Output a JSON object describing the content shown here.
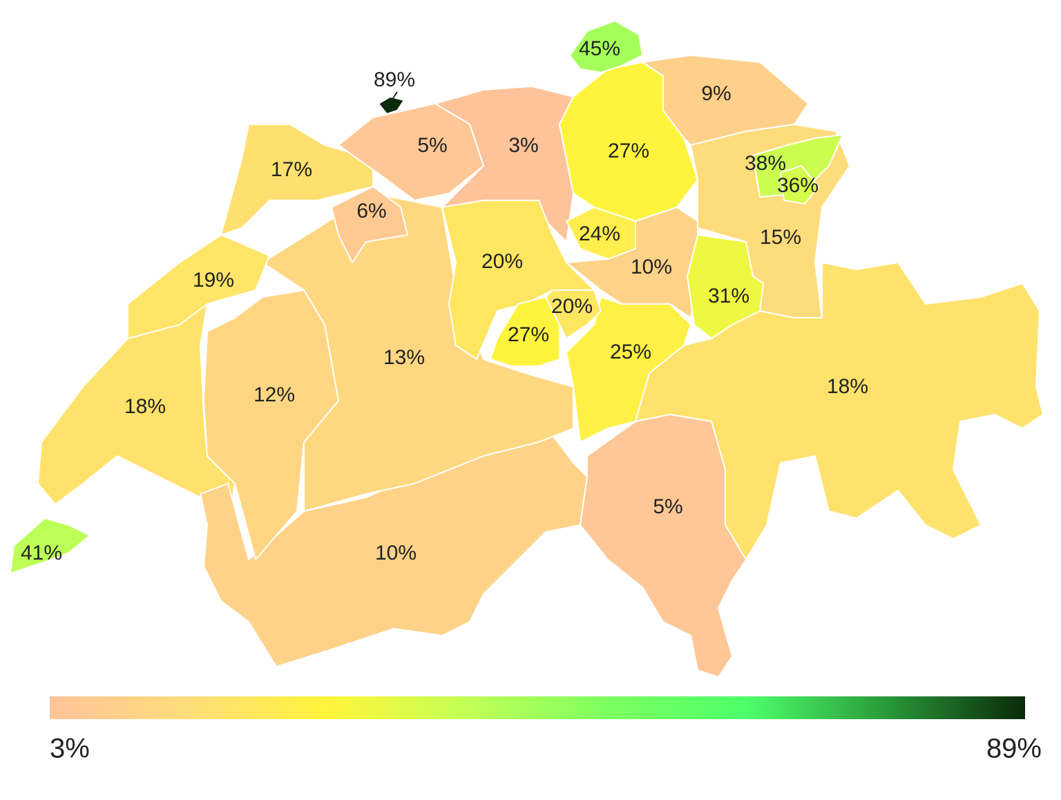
{
  "chart_data": {
    "type": "choropleth",
    "values": [
      45,
      89,
      9,
      5,
      3,
      27,
      17,
      38,
      36,
      6,
      24,
      15,
      20,
      10,
      19,
      31,
      20,
      27,
      25,
      13,
      18,
      12,
      18,
      5,
      10,
      41
    ],
    "value_labels": [
      "45%",
      "89%",
      "9%",
      "5%",
      "3%",
      "27%",
      "17%",
      "38%",
      "36%",
      "6%",
      "24%",
      "15%",
      "20%",
      "10%",
      "19%",
      "31%",
      "20%",
      "27%",
      "25%",
      "13%",
      "18%",
      "12%",
      "18%",
      "5%",
      "10%",
      "41%"
    ],
    "colors": [
      "#ffc39a",
      "#fedd7a",
      "#fff53a",
      "#c2ff55",
      "#7dff60",
      "#4dff6a",
      "#2a9a3a",
      "#0a2a0a"
    ],
    "clim": [
      3,
      89
    ],
    "cticks": [
      {
        "value": 3,
        "label": "3%"
      },
      {
        "value": 89,
        "label": "89%"
      }
    ]
  }
}
